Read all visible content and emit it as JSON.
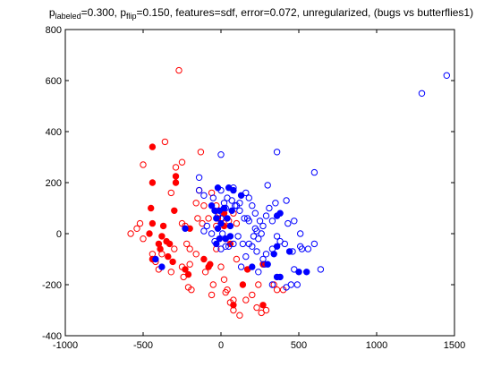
{
  "chart_data": {
    "type": "scatter",
    "title": {
      "p_labeled_base": "p",
      "p_labeled_sub": "labeled",
      "p_labeled_value": "=0.300, ",
      "p_flip_base": "p",
      "p_flip_sub": "flip",
      "p_flip_value": "=0.150, features=sdf, error=0.072, unregularized, (bugs vs butterflies1)"
    },
    "xlabel": "",
    "ylabel": "",
    "xlim": [
      -1000,
      1500
    ],
    "ylim": [
      -400,
      800
    ],
    "xticks": [
      -1000,
      -500,
      0,
      500,
      1000,
      1500
    ],
    "yticks": [
      -400,
      -200,
      0,
      200,
      400,
      600,
      800
    ],
    "xtick_labels": [
      "-1000",
      "-500",
      "0",
      "500",
      "1000",
      "1500"
    ],
    "ytick_labels": [
      "-400",
      "-200",
      "0",
      "200",
      "400",
      "600",
      "800"
    ],
    "grid": false,
    "colors": {
      "red": "#ff0000",
      "blue": "#0000ff"
    },
    "series": [
      {
        "color": "#ff0000",
        "marker": "filled-circle",
        "points": [
          [
            -440,
            340
          ],
          [
            -440,
            200
          ],
          [
            -290,
            225
          ],
          [
            -290,
            200
          ],
          [
            -450,
            100
          ],
          [
            -300,
            90
          ],
          [
            -440,
            40
          ],
          [
            -370,
            30
          ],
          [
            -200,
            20
          ],
          [
            -460,
            0
          ],
          [
            -380,
            -10
          ],
          [
            -350,
            -30
          ],
          [
            -400,
            -40
          ],
          [
            -330,
            -40
          ],
          [
            -390,
            -60
          ],
          [
            -340,
            -90
          ],
          [
            -440,
            -100
          ],
          [
            -310,
            -110
          ],
          [
            -230,
            -140
          ],
          [
            -210,
            -160
          ],
          [
            -80,
            -130
          ],
          [
            -110,
            -100
          ],
          [
            -70,
            -120
          ],
          [
            20,
            30
          ],
          [
            30,
            -20
          ],
          [
            20,
            80
          ],
          [
            60,
            -40
          ],
          [
            270,
            -120
          ],
          [
            270,
            -280
          ],
          [
            140,
            -200
          ],
          [
            80,
            -280
          ],
          [
            170,
            -140
          ],
          [
            -20,
            60
          ]
        ]
      },
      {
        "color": "#ff0000",
        "marker": "open-circle",
        "points": [
          [
            -270,
            640
          ],
          [
            -360,
            360
          ],
          [
            -290,
            260
          ],
          [
            -250,
            280
          ],
          [
            -320,
            160
          ],
          [
            -130,
            320
          ],
          [
            -500,
            270
          ],
          [
            -140,
            170
          ],
          [
            -160,
            120
          ],
          [
            -110,
            110
          ],
          [
            -60,
            160
          ],
          [
            -30,
            110
          ],
          [
            -520,
            40
          ],
          [
            -540,
            20
          ],
          [
            -580,
            0
          ],
          [
            -500,
            -20
          ],
          [
            -440,
            -80
          ],
          [
            -380,
            -80
          ],
          [
            -420,
            -110
          ],
          [
            -400,
            -140
          ],
          [
            -300,
            -60
          ],
          [
            -320,
            -150
          ],
          [
            -220,
            -40
          ],
          [
            -200,
            -60
          ],
          [
            -160,
            -80
          ],
          [
            -250,
            -130
          ],
          [
            -240,
            -170
          ],
          [
            -210,
            -210
          ],
          [
            -190,
            -220
          ],
          [
            -100,
            -150
          ],
          [
            -60,
            -240
          ],
          [
            -50,
            -200
          ],
          [
            0,
            -130
          ],
          [
            20,
            -180
          ],
          [
            40,
            -220
          ],
          [
            80,
            -260
          ],
          [
            80,
            -300
          ],
          [
            120,
            -320
          ],
          [
            160,
            -260
          ],
          [
            200,
            -240
          ],
          [
            240,
            -200
          ],
          [
            260,
            -310
          ],
          [
            290,
            -300
          ],
          [
            340,
            -200
          ],
          [
            360,
            -220
          ],
          [
            400,
            -220
          ],
          [
            -120,
            40
          ],
          [
            -80,
            60
          ],
          [
            -30,
            30
          ],
          [
            -10,
            80
          ],
          [
            10,
            60
          ],
          [
            50,
            50
          ],
          [
            80,
            80
          ],
          [
            100,
            40
          ],
          [
            -250,
            40
          ],
          [
            -150,
            60
          ],
          [
            100,
            -100
          ],
          [
            30,
            -230
          ],
          [
            230,
            -290
          ],
          [
            60,
            -270
          ],
          [
            -200,
            -120
          ],
          [
            -30,
            -60
          ],
          [
            -230,
            30
          ]
        ]
      },
      {
        "color": "#0000ff",
        "marker": "filled-circle",
        "points": [
          [
            -420,
            -100
          ],
          [
            -380,
            -130
          ],
          [
            -230,
            20
          ],
          [
            -20,
            180
          ],
          [
            50,
            180
          ],
          [
            130,
            150
          ],
          [
            80,
            170
          ],
          [
            -60,
            110
          ],
          [
            -40,
            90
          ],
          [
            -30,
            60
          ],
          [
            0,
            40
          ],
          [
            -10,
            -20
          ],
          [
            -30,
            -40
          ],
          [
            30,
            -20
          ],
          [
            60,
            30
          ],
          [
            70,
            90
          ],
          [
            60,
            -10
          ],
          [
            200,
            -130
          ],
          [
            300,
            -120
          ],
          [
            340,
            -80
          ],
          [
            360,
            -50
          ],
          [
            360,
            -170
          ],
          [
            380,
            -170
          ],
          [
            440,
            -70
          ],
          [
            500,
            -150
          ],
          [
            550,
            -150
          ],
          [
            20,
            100
          ],
          [
            -10,
            90
          ],
          [
            360,
            70
          ],
          [
            380,
            80
          ],
          [
            40,
            60
          ],
          [
            -20,
            20
          ]
        ]
      },
      {
        "color": "#0000ff",
        "marker": "open-circle",
        "points": [
          [
            1290,
            550
          ],
          [
            1450,
            620
          ],
          [
            600,
            240
          ],
          [
            360,
            320
          ],
          [
            0,
            310
          ],
          [
            -140,
            220
          ],
          [
            -140,
            170
          ],
          [
            -110,
            150
          ],
          [
            -50,
            140
          ],
          [
            0,
            170
          ],
          [
            40,
            140
          ],
          [
            20,
            120
          ],
          [
            70,
            130
          ],
          [
            100,
            110
          ],
          [
            80,
            180
          ],
          [
            120,
            90
          ],
          [
            170,
            60
          ],
          [
            150,
            60
          ],
          [
            180,
            50
          ],
          [
            220,
            20
          ],
          [
            250,
            50
          ],
          [
            260,
            0
          ],
          [
            240,
            -20
          ],
          [
            180,
            -40
          ],
          [
            140,
            -40
          ],
          [
            110,
            -10
          ],
          [
            80,
            -40
          ],
          [
            50,
            -50
          ],
          [
            30,
            -50
          ],
          [
            10,
            0
          ],
          [
            0,
            -60
          ],
          [
            -40,
            -30
          ],
          [
            -90,
            30
          ],
          [
            -110,
            10
          ],
          [
            -60,
            0
          ],
          [
            -20,
            70
          ],
          [
            0,
            60
          ],
          [
            30,
            100
          ],
          [
            90,
            110
          ],
          [
            120,
            120
          ],
          [
            200,
            -50
          ],
          [
            230,
            -70
          ],
          [
            270,
            -100
          ],
          [
            290,
            -80
          ],
          [
            330,
            -60
          ],
          [
            360,
            -10
          ],
          [
            380,
            -30
          ],
          [
            410,
            -40
          ],
          [
            460,
            -70
          ],
          [
            470,
            -140
          ],
          [
            490,
            -200
          ],
          [
            520,
            -60
          ],
          [
            560,
            -60
          ],
          [
            600,
            -40
          ],
          [
            640,
            -140
          ],
          [
            420,
            -210
          ],
          [
            300,
            190
          ],
          [
            310,
            100
          ],
          [
            330,
            50
          ],
          [
            290,
            70
          ],
          [
            270,
            30
          ],
          [
            230,
            10
          ],
          [
            220,
            80
          ],
          [
            200,
            110
          ],
          [
            180,
            140
          ],
          [
            160,
            160
          ],
          [
            350,
            120
          ],
          [
            420,
            130
          ],
          [
            430,
            40
          ],
          [
            510,
            0
          ],
          [
            510,
            -50
          ],
          [
            280,
            -120
          ],
          [
            240,
            -150
          ],
          [
            470,
            50
          ],
          [
            210,
            -10
          ],
          [
            160,
            -90
          ],
          [
            130,
            -130
          ],
          [
            330,
            -200
          ],
          [
            450,
            -200
          ]
        ]
      }
    ]
  }
}
